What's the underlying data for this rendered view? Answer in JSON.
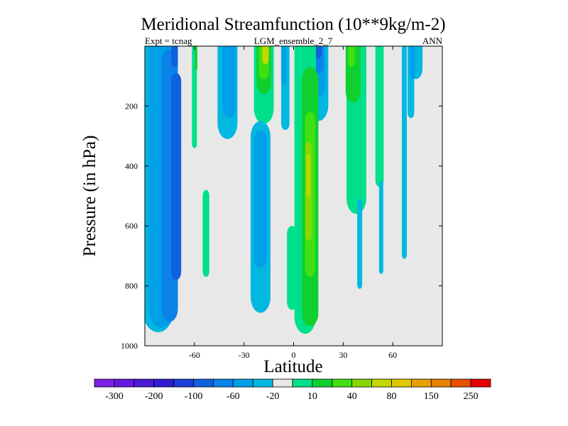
{
  "chart_data": {
    "type": "heatmap",
    "title": "Meridional Streamfunction (10**9kg/m-2)",
    "subtitle_left": "Expt = tcnag",
    "subtitle_center": "LGM_ensemble_2_7",
    "subtitle_right": "ANN",
    "xlabel": "Latitude",
    "ylabel": "Pressure (in hPa)",
    "xlim": [
      -90,
      90
    ],
    "ylim": [
      1000,
      0
    ],
    "x_ticks": [
      -60,
      -30,
      0,
      30,
      60
    ],
    "y_ticks": [
      200,
      400,
      600,
      800,
      1000
    ],
    "background_color": "#e8e8e8",
    "colorbar": {
      "colors": [
        "#7a1fe6",
        "#6418e0",
        "#4a1ad8",
        "#2f1ed0",
        "#1a3cd8",
        "#1060e0",
        "#0a82e8",
        "#00a0e8",
        "#00b8e0",
        "#e8e8e8",
        "#00e08a",
        "#10d030",
        "#40e010",
        "#88d800",
        "#c0d800",
        "#e0c800",
        "#e8a000",
        "#e88000",
        "#e85000",
        "#e80000"
      ],
      "tick_labels": [
        "-300",
        "-200",
        "-100",
        "-60",
        "-20",
        "10",
        "40",
        "80",
        "150",
        "250"
      ]
    },
    "contours": [
      {
        "level": -20,
        "color": "#00b8e0",
        "lat": -82,
        "p_top": 0,
        "p_bot": 955,
        "lat_width": 20
      },
      {
        "level": -40,
        "color": "#00a0e8",
        "lat": -80,
        "p_top": 0,
        "p_bot": 940,
        "lat_width": 16
      },
      {
        "level": -60,
        "color": "#0a82e8",
        "lat": -75,
        "p_top": 10,
        "p_bot": 920,
        "lat_width": 10
      },
      {
        "level": -100,
        "color": "#1060e0",
        "lat": -71,
        "p_top": 90,
        "p_bot": 780,
        "lat_width": 6
      },
      {
        "level": -100,
        "color": "#1060e0",
        "lat": -72,
        "p_top": 0,
        "p_bot": 70,
        "lat_width": 4
      },
      {
        "level": 10,
        "color": "#00e08a",
        "lat": -60,
        "p_top": 0,
        "p_bot": 340,
        "lat_width": 3
      },
      {
        "level": 40,
        "color": "#10d030",
        "lat": -59,
        "p_top": 0,
        "p_bot": 80,
        "lat_width": 1.5
      },
      {
        "level": 10,
        "color": "#00e08a",
        "lat": -53,
        "p_top": 480,
        "p_bot": 770,
        "lat_width": 4
      },
      {
        "level": -20,
        "color": "#00b8e0",
        "lat": -40,
        "p_top": 0,
        "p_bot": 310,
        "lat_width": 12
      },
      {
        "level": -40,
        "color": "#00a0e8",
        "lat": -39,
        "p_top": 0,
        "p_bot": 240,
        "lat_width": 8
      },
      {
        "level": 10,
        "color": "#00e08a",
        "lat": -18,
        "p_top": 0,
        "p_bot": 260,
        "lat_width": 12
      },
      {
        "level": 40,
        "color": "#10d030",
        "lat": -18,
        "p_top": 0,
        "p_bot": 160,
        "lat_width": 9
      },
      {
        "level": 60,
        "color": "#40e010",
        "lat": -18,
        "p_top": 0,
        "p_bot": 110,
        "lat_width": 6
      },
      {
        "level": 80,
        "color": "#c0d800",
        "lat": -17,
        "p_top": 0,
        "p_bot": 60,
        "lat_width": 4
      },
      {
        "level": -20,
        "color": "#00b8e0",
        "lat": -20,
        "p_top": 250,
        "p_bot": 890,
        "lat_width": 12
      },
      {
        "level": -40,
        "color": "#00a0e8",
        "lat": -20,
        "p_top": 280,
        "p_bot": 740,
        "lat_width": 8
      },
      {
        "level": -20,
        "color": "#00b8e0",
        "lat": -5,
        "p_top": 0,
        "p_bot": 280,
        "lat_width": 5
      },
      {
        "level": -40,
        "color": "#00a0e8",
        "lat": -6,
        "p_top": 0,
        "p_bot": 130,
        "lat_width": 3
      },
      {
        "level": -20,
        "color": "#00b8e0",
        "lat": 15,
        "p_top": 0,
        "p_bot": 250,
        "lat_width": 12
      },
      {
        "level": -40,
        "color": "#00a0e8",
        "lat": 15,
        "p_top": 0,
        "p_bot": 170,
        "lat_width": 9
      },
      {
        "level": -60,
        "color": "#0a82e8",
        "lat": 15,
        "p_top": 0,
        "p_bot": 90,
        "lat_width": 6
      },
      {
        "level": -100,
        "color": "#1060e0",
        "lat": 15,
        "p_top": 0,
        "p_bot": 40,
        "lat_width": 4
      },
      {
        "level": 10,
        "color": "#00e08a",
        "lat": 7,
        "p_top": 0,
        "p_bot": 960,
        "lat_width": 13
      },
      {
        "level": 10,
        "color": "#00e08a",
        "lat": -1,
        "p_top": 600,
        "p_bot": 880,
        "lat_width": 6
      },
      {
        "level": 40,
        "color": "#10d030",
        "lat": 10,
        "p_top": 70,
        "p_bot": 935,
        "lat_width": 10
      },
      {
        "level": 60,
        "color": "#40e010",
        "lat": 10,
        "p_top": 220,
        "p_bot": 770,
        "lat_width": 6
      },
      {
        "level": 80,
        "color": "#88d800",
        "lat": 9,
        "p_top": 320,
        "p_bot": 650,
        "lat_width": 4
      },
      {
        "level": 150,
        "color": "#c0d800",
        "lat": 9,
        "p_top": 360,
        "p_bot": 500,
        "lat_width": 2
      },
      {
        "level": 10,
        "color": "#00e08a",
        "lat": 38,
        "p_top": 0,
        "p_bot": 560,
        "lat_width": 12
      },
      {
        "level": 40,
        "color": "#10d030",
        "lat": 36,
        "p_top": 0,
        "p_bot": 190,
        "lat_width": 9
      },
      {
        "level": 60,
        "color": "#40e010",
        "lat": 35,
        "p_top": 0,
        "p_bot": 70,
        "lat_width": 4
      },
      {
        "level": 10,
        "color": "#00e08a",
        "lat": 52,
        "p_top": 0,
        "p_bot": 470,
        "lat_width": 5
      },
      {
        "level": -20,
        "color": "#00b8e0",
        "lat": 40,
        "p_top": 510,
        "p_bot": 810,
        "lat_width": 3
      },
      {
        "level": -20,
        "color": "#00b8e0",
        "lat": 53,
        "p_top": 450,
        "p_bot": 760,
        "lat_width": 2.5
      },
      {
        "level": -20,
        "color": "#00b8e0",
        "lat": 74,
        "p_top": 0,
        "p_bot": 110,
        "lat_width": 8
      },
      {
        "level": -20,
        "color": "#00b8e0",
        "lat": 67,
        "p_top": 0,
        "p_bot": 710,
        "lat_width": 3
      },
      {
        "level": -20,
        "color": "#00b8e0",
        "lat": 71,
        "p_top": 0,
        "p_bot": 240,
        "lat_width": 4
      },
      {
        "level": -40,
        "color": "#00a0e8",
        "lat": 72,
        "p_top": 0,
        "p_bot": 110,
        "lat_width": 3
      }
    ]
  }
}
